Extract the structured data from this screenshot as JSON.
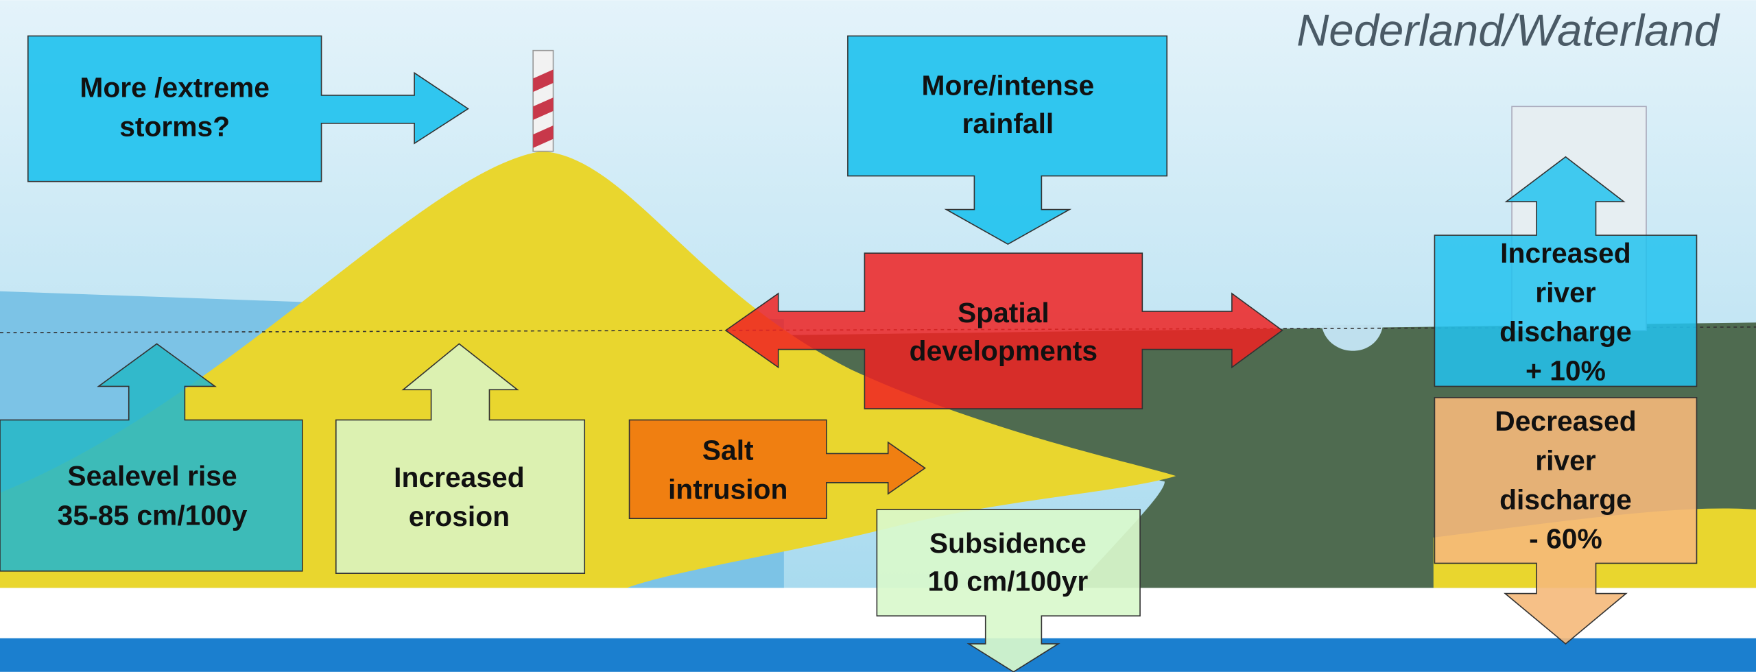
{
  "header": {
    "title": "Nederland/Waterland"
  },
  "boxes": [
    {
      "lines": [
        "More /extreme",
        "storms?"
      ]
    },
    {
      "lines": [
        "More/intense",
        "rainfall"
      ]
    },
    {
      "lines": [
        "Spatial",
        "developments"
      ]
    },
    {
      "lines": [
        "Increased",
        "river",
        "discharge",
        "+ 10%"
      ]
    },
    {
      "lines": [
        "Decreased",
        "river",
        "discharge",
        "- 60%"
      ]
    },
    {
      "lines": [
        "Sealevel rise",
        "35-85 cm/100y"
      ]
    },
    {
      "lines": [
        "Increased",
        "erosion"
      ]
    },
    {
      "lines": [
        "Salt",
        "intrusion"
      ]
    },
    {
      "lines": [
        "Subsidence",
        "10 cm/100yr"
      ]
    }
  ]
}
